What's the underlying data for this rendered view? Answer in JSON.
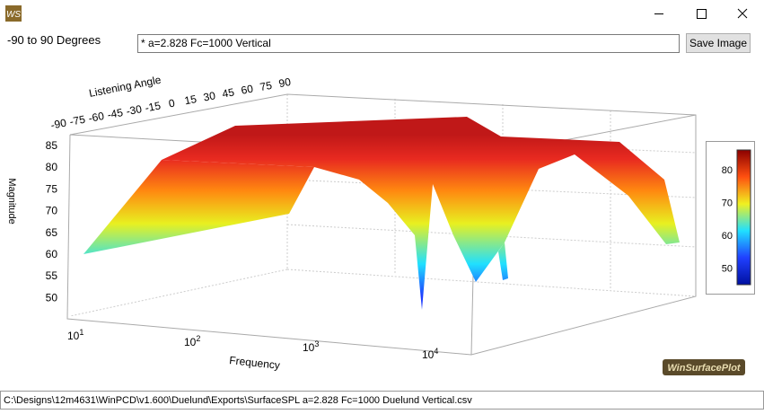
{
  "window": {
    "icon": "WS",
    "header": "-90 to 90 Degrees",
    "input": "*  a=2.828 Fc=1000 Vertical",
    "button": "Save Image"
  },
  "plot": {
    "angle_axis": {
      "label": "Listening Angle",
      "ticks": [
        "-90",
        "-75",
        "-60",
        "-45",
        "-30",
        "-15",
        "0",
        "15",
        "30",
        "45",
        "60",
        "75",
        "90"
      ]
    },
    "magnitude_axis": {
      "label": "Magnitude",
      "ticks": [
        "85",
        "80",
        "75",
        "70",
        "65",
        "60",
        "55",
        "50"
      ]
    },
    "frequency_axis": {
      "label": "Frequency",
      "ticks": [
        {
          "base": "10",
          "exponent": "1"
        },
        {
          "base": "10",
          "exponent": "2"
        },
        {
          "base": "10",
          "exponent": "3"
        },
        {
          "base": "10",
          "exponent": "4"
        }
      ]
    },
    "colorbar": {
      "ticks": [
        "80",
        "70",
        "60",
        "50"
      ]
    },
    "logo": "WinSurfacePlot"
  },
  "status": "C:\\Designs\\12m4631\\WinPCD\\v1.600\\Duelund\\Exports\\SurfaceSPL  a=2.828 Fc=1000 Duelund Vertical.csv"
}
